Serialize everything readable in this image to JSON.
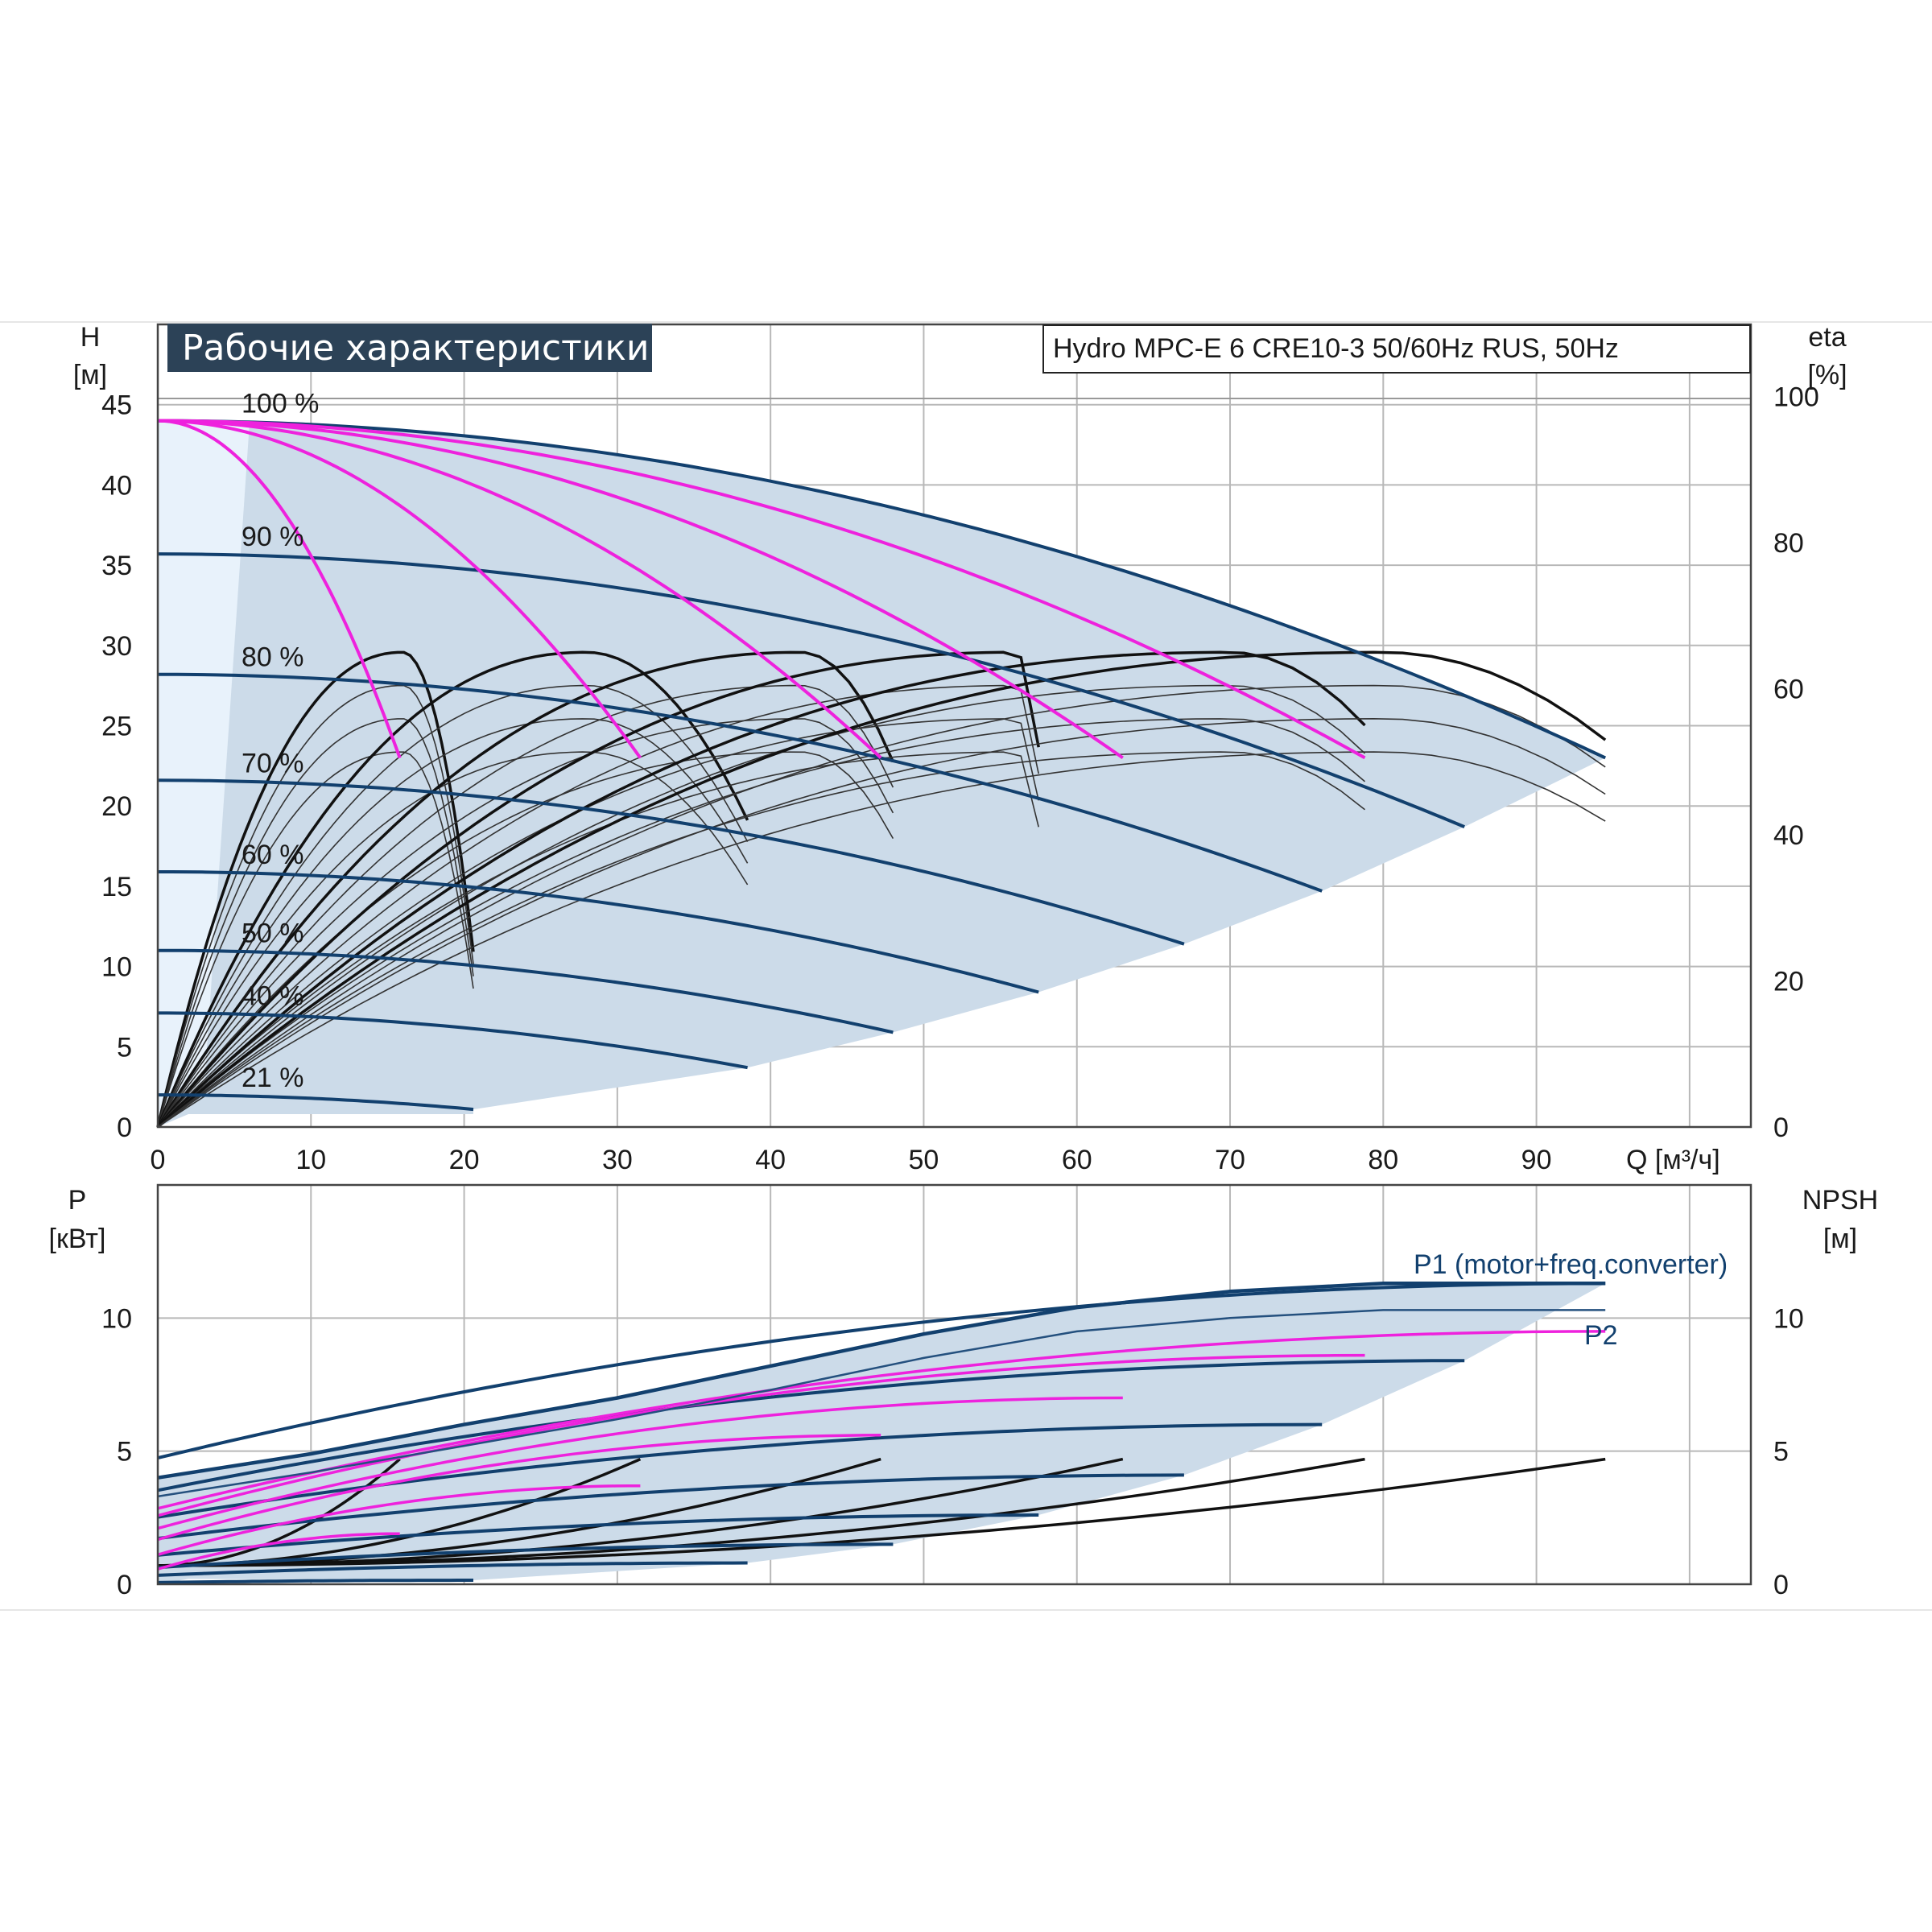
{
  "chart_data": [
    {
      "type": "line",
      "title": "Рабочие характеристики",
      "subtitle": "Hydro MPC-E 6 CRE10-3 50/60Hz RUS, 50Hz",
      "xlabel": "Q [м³/ч]",
      "ylabel": "H",
      "ylabel_unit": "[м]",
      "y2label": "eta",
      "y2label_unit": "[%]",
      "xlim": [
        0,
        104
      ],
      "ylim": [
        0,
        50
      ],
      "y2lim": [
        0,
        100
      ],
      "x_ticks": [
        "0",
        "10",
        "20",
        "30",
        "40",
        "50",
        "60",
        "70",
        "80",
        "90"
      ],
      "y_ticks": [
        "0",
        "5",
        "10",
        "15",
        "20",
        "25",
        "30",
        "35",
        "40",
        "45"
      ],
      "y2_ticks": [
        "0",
        "20",
        "40",
        "60",
        "80",
        "100"
      ],
      "grid": true,
      "speed_labels": [
        "100 %",
        "90 %",
        "80 %",
        "70 %",
        "60 %",
        "50 %",
        "40 %",
        "21 %"
      ],
      "speed_curves": [
        {
          "name": "100 %",
          "h0": 44.0,
          "qmax": 94.5,
          "hend": 23.0
        },
        {
          "name": "90 %",
          "h0": 35.7,
          "qmax": 85.3,
          "hend": 18.7
        },
        {
          "name": "80 %",
          "h0": 28.2,
          "qmax": 76.0,
          "hend": 14.7
        },
        {
          "name": "70 %",
          "h0": 21.6,
          "qmax": 67.0,
          "hend": 11.4
        },
        {
          "name": "60 %",
          "h0": 15.9,
          "qmax": 57.5,
          "hend": 8.4
        },
        {
          "name": "50 %",
          "h0": 11.0,
          "qmax": 48.0,
          "hend": 5.9
        },
        {
          "name": "40 %",
          "h0": 7.1,
          "qmax": 38.5,
          "hend": 3.7
        },
        {
          "name": "21 %",
          "h0": 2.0,
          "qmax": 20.6,
          "hend": 1.1
        }
      ],
      "pump_count_curves": [
        {
          "pumps": 1,
          "h0": 44.0,
          "qmax": 15.8,
          "hend": 23.0
        },
        {
          "pumps": 2,
          "h0": 44.0,
          "qmax": 31.5,
          "hend": 23.0
        },
        {
          "pumps": 3,
          "h0": 44.0,
          "qmax": 47.2,
          "hend": 23.0
        },
        {
          "pumps": 4,
          "h0": 44.0,
          "qmax": 63.0,
          "hend": 23.0
        },
        {
          "pumps": 5,
          "h0": 44.0,
          "qmax": 78.8,
          "hend": 23.0
        }
      ],
      "efficiency_curves": [
        {
          "pumps": 1,
          "peak": 65,
          "qpeak": 16.0,
          "qend": 20.6,
          "eta_end": 24
        },
        {
          "pumps": 2,
          "peak": 65,
          "qpeak": 28.0,
          "qend": 38.5,
          "eta_end": 42
        },
        {
          "pumps": 3,
          "peak": 65,
          "qpeak": 42.0,
          "qend": 48.0,
          "eta_end": 50
        },
        {
          "pumps": 4,
          "peak": 65,
          "qpeak": 56.0,
          "qend": 57.5,
          "eta_end": 52
        },
        {
          "pumps": 5,
          "peak": 65,
          "qpeak": 70.0,
          "qend": 78.8,
          "eta_end": 55
        },
        {
          "pumps": 6,
          "peak": 65,
          "qpeak": 80.0,
          "qend": 94.5,
          "eta_end": 53
        }
      ]
    },
    {
      "type": "line",
      "xlabel": "Q [м³/ч]",
      "ylabel": "P",
      "ylabel_unit": "[кВт]",
      "y2label": "NPSH",
      "y2label_unit": "[м]",
      "xlim": [
        0,
        104
      ],
      "ylim": [
        0,
        15
      ],
      "y2lim": [
        0,
        15
      ],
      "y_ticks": [
        "0",
        "5",
        "10"
      ],
      "y2_ticks": [
        "0",
        "5",
        "10"
      ],
      "grid": true,
      "series": [
        {
          "name": "P1 (motor+freq.converter)",
          "x": [
            0,
            10,
            20,
            30,
            40,
            50,
            60,
            70,
            80,
            90,
            94.5
          ],
          "y": [
            4.0,
            4.9,
            6.0,
            7.0,
            8.2,
            9.4,
            10.4,
            11.0,
            11.3,
            11.3,
            11.3
          ]
        },
        {
          "name": "P2",
          "x": [
            0,
            10,
            20,
            30,
            40,
            50,
            60,
            70,
            80,
            90,
            94.5
          ],
          "y": [
            3.3,
            4.2,
            5.2,
            6.2,
            7.3,
            8.5,
            9.5,
            10.0,
            10.3,
            10.3,
            10.3
          ]
        }
      ],
      "npsh_curves": [
        {
          "pumps": 1,
          "qend": 15.8,
          "npsh_end": 4.7
        },
        {
          "pumps": 2,
          "qend": 31.5,
          "npsh_end": 4.7
        },
        {
          "pumps": 3,
          "qend": 47.2,
          "npsh_end": 4.7
        },
        {
          "pumps": 4,
          "qend": 63.0,
          "npsh_end": 4.7
        },
        {
          "pumps": 5,
          "qend": 78.8,
          "npsh_end": 4.7
        },
        {
          "pumps": 6,
          "qend": 94.5,
          "npsh_end": 4.7
        }
      ],
      "speed_power_ends": [
        {
          "name": "100 %",
          "qend": 94.5,
          "p": 11.3
        },
        {
          "name": "90 %",
          "qend": 85.3,
          "p": 8.4
        },
        {
          "name": "80 %",
          "qend": 76.0,
          "p": 6.0
        },
        {
          "name": "70 %",
          "qend": 67.0,
          "p": 4.1
        },
        {
          "name": "60 %",
          "qend": 57.5,
          "p": 2.6
        },
        {
          "name": "50 %",
          "qend": 48.0,
          "p": 1.5
        },
        {
          "name": "40 %",
          "qend": 38.5,
          "p": 0.8
        },
        {
          "name": "21 %",
          "qend": 20.6,
          "p": 0.15
        }
      ],
      "pump_count_power": [
        {
          "pumps": 1,
          "qend": 15.8,
          "p": 1.9
        },
        {
          "pumps": 2,
          "qend": 31.5,
          "p": 3.7
        },
        {
          "pumps": 3,
          "qend": 47.2,
          "p": 5.6
        },
        {
          "pumps": 4,
          "qend": 63.0,
          "p": 7.0
        },
        {
          "pumps": 5,
          "qend": 78.8,
          "p": 8.6
        },
        {
          "pumps": 6,
          "qend": 94.5,
          "p": 9.5
        }
      ]
    }
  ]
}
